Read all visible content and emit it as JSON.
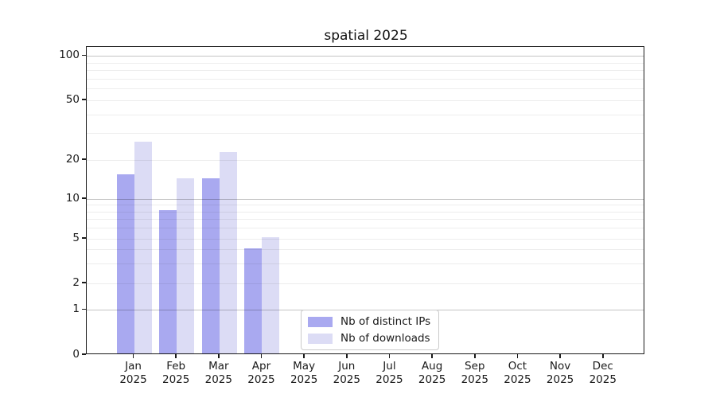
{
  "title": "spatial 2025",
  "chart_data": {
    "type": "bar",
    "title": "spatial 2025",
    "categories": [
      "Jan 2025",
      "Feb 2025",
      "Mar 2025",
      "Apr 2025",
      "May 2025",
      "Jun 2025",
      "Jul 2025",
      "Aug 2025",
      "Sep 2025",
      "Oct 2025",
      "Nov 2025",
      "Dec 2025"
    ],
    "series": [
      {
        "name": "Nb of distinct IPs",
        "color": "#a9a9f0",
        "values": [
          15,
          8,
          14,
          4,
          0,
          0,
          0,
          0,
          0,
          0,
          0,
          0
        ]
      },
      {
        "name": "Nb of downloads",
        "color": "#dcdcf5",
        "values": [
          26,
          14,
          22,
          5,
          0,
          0,
          0,
          0,
          0,
          0,
          0,
          0
        ]
      }
    ],
    "yaxis": {
      "tick_labels": [
        100,
        50,
        20,
        10,
        5,
        2,
        1,
        0
      ],
      "scale": "log-like",
      "ylim": [
        0,
        100
      ],
      "major_gridline_values": [
        1,
        10,
        100
      ]
    },
    "xlabel": "",
    "ylabel": "",
    "grid": "horizontal major+minor",
    "legend_position": "lower center, inside plot"
  }
}
